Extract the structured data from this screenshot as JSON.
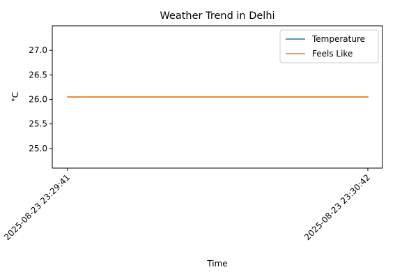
{
  "chart_data": {
    "type": "line",
    "title": "Weather Trend in Delhi",
    "xlabel": "Time",
    "ylabel": "°C",
    "x": [
      "2025-08-23 23:29:41",
      "2025-08-23 23:30:42"
    ],
    "series": [
      {
        "name": "Temperature",
        "values": [
          26.05,
          26.05
        ],
        "color": "#1f77b4"
      },
      {
        "name": "Feels Like",
        "values": [
          26.05,
          26.05
        ],
        "color": "#ff7f0e"
      }
    ],
    "ylim": [
      24.6,
      27.5
    ],
    "yticks": [
      25.0,
      25.5,
      26.0,
      26.5,
      27.0
    ],
    "ytick_labels": [
      "25.0",
      "25.5",
      "26.0",
      "26.5",
      "27.0"
    ],
    "grid": false,
    "legend": "top-right"
  }
}
